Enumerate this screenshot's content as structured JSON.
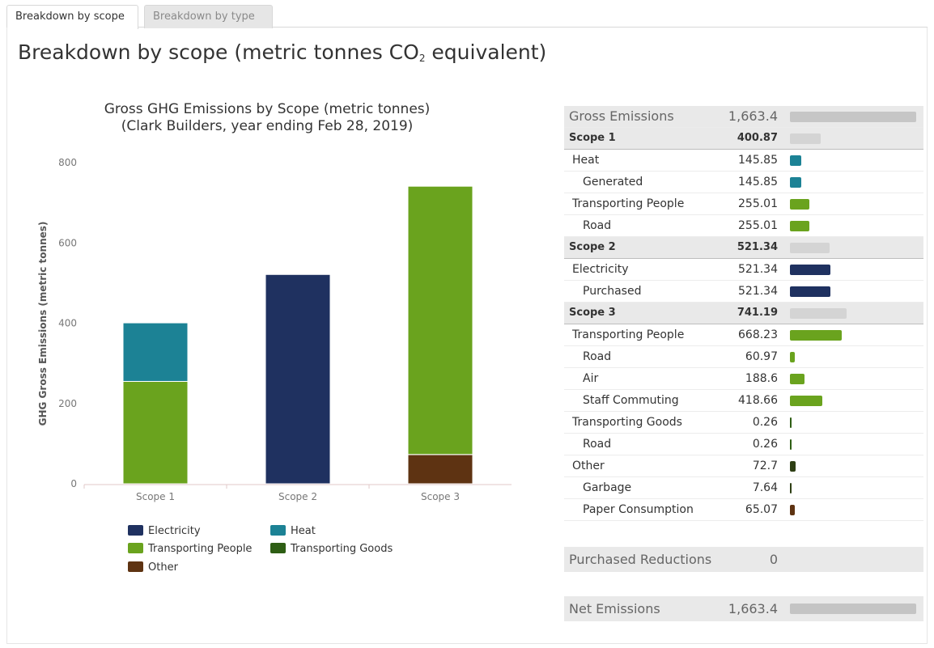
{
  "tabs": [
    {
      "label": "Breakdown by scope",
      "active": true
    },
    {
      "label": "Breakdown by type",
      "active": false
    }
  ],
  "page_title": {
    "text": "Breakdown by scope (metric tonnes CO",
    "subscript": "2",
    "suffix": " equivalent)"
  },
  "colors": {
    "electricity": "#1f3160",
    "heat": "#1c8295",
    "transporting_people": "#6aa31e",
    "transporting_goods": "#2e5e14",
    "other": "#5e3312",
    "grey_bar": "#c6c6c6"
  },
  "chart_data": {
    "type": "bar",
    "stacked": true,
    "title": "Gross GHG Emissions by Scope (metric tonnes)",
    "subtitle": "(Clark Builders, year ending Feb 28, 2019)",
    "ylabel": "GHG Gross Emissions (metric tonnes)",
    "xlabel": "",
    "categories": [
      "Scope 1",
      "Scope 2",
      "Scope 3"
    ],
    "ylim": [
      0,
      800
    ],
    "yticks": [
      0,
      200,
      400,
      600,
      800
    ],
    "legend_position": "bottom",
    "series": [
      {
        "name": "Other",
        "color": "#5e3312",
        "values": [
          0,
          0,
          72.7
        ]
      },
      {
        "name": "Transporting Goods",
        "color": "#2e5e14",
        "values": [
          0,
          0,
          0.26
        ]
      },
      {
        "name": "Transporting People",
        "color": "#6aa31e",
        "values": [
          255.01,
          0,
          668.23
        ]
      },
      {
        "name": "Electricity",
        "color": "#1f3160",
        "values": [
          0,
          521.34,
          0
        ]
      },
      {
        "name": "Heat",
        "color": "#1c8295",
        "values": [
          145.85,
          0,
          0
        ]
      }
    ],
    "legend": [
      {
        "name": "Electricity",
        "color": "#1f3160"
      },
      {
        "name": "Heat",
        "color": "#1c8295"
      },
      {
        "name": "Transporting People",
        "color": "#6aa31e"
      },
      {
        "name": "Transporting Goods",
        "color": "#2e5e14"
      },
      {
        "name": "Other",
        "color": "#5e3312"
      }
    ]
  },
  "table": {
    "rows": [
      {
        "label": "Gross Emissions",
        "value": "1,663.4",
        "level": 0,
        "kind": "gross",
        "bar_value": 1663.4,
        "bar_color": "#c6c6c6"
      },
      {
        "label": "Scope 1",
        "value": "400.87",
        "level": 0,
        "kind": "scope",
        "bar_value": 400.87,
        "bar_color": "#d4d4d4"
      },
      {
        "label": "Heat",
        "value": "145.85",
        "level": 1,
        "kind": "item",
        "bar_value": 145.85,
        "bar_color": "#1c8295"
      },
      {
        "label": "Generated",
        "value": "145.85",
        "level": 2,
        "kind": "item",
        "bar_value": 145.85,
        "bar_color": "#1c8295"
      },
      {
        "label": "Transporting People",
        "value": "255.01",
        "level": 1,
        "kind": "item",
        "bar_value": 255.01,
        "bar_color": "#6aa31e"
      },
      {
        "label": "Road",
        "value": "255.01",
        "level": 2,
        "kind": "item",
        "bar_value": 255.01,
        "bar_color": "#6aa31e"
      },
      {
        "label": "Scope 2",
        "value": "521.34",
        "level": 0,
        "kind": "scope",
        "bar_value": 521.34,
        "bar_color": "#d4d4d4"
      },
      {
        "label": "Electricity",
        "value": "521.34",
        "level": 1,
        "kind": "item",
        "bar_value": 521.34,
        "bar_color": "#1f3160"
      },
      {
        "label": "Purchased",
        "value": "521.34",
        "level": 2,
        "kind": "item",
        "bar_value": 521.34,
        "bar_color": "#1f3160"
      },
      {
        "label": "Scope 3",
        "value": "741.19",
        "level": 0,
        "kind": "scope",
        "bar_value": 741.19,
        "bar_color": "#d4d4d4"
      },
      {
        "label": "Transporting People",
        "value": "668.23",
        "level": 1,
        "kind": "item",
        "bar_value": 668.23,
        "bar_color": "#6aa31e"
      },
      {
        "label": "Road",
        "value": "60.97",
        "level": 2,
        "kind": "item",
        "bar_value": 60.97,
        "bar_color": "#6aa31e"
      },
      {
        "label": "Air",
        "value": "188.6",
        "level": 2,
        "kind": "item",
        "bar_value": 188.6,
        "bar_color": "#6aa31e"
      },
      {
        "label": "Staff Commuting",
        "value": "418.66",
        "level": 2,
        "kind": "item",
        "bar_value": 418.66,
        "bar_color": "#6aa31e"
      },
      {
        "label": "Transporting Goods",
        "value": "0.26",
        "level": 1,
        "kind": "item",
        "bar_value": 0.26,
        "bar_color": "#2e5e14"
      },
      {
        "label": "Road",
        "value": "0.26",
        "level": 2,
        "kind": "item",
        "bar_value": 0.26,
        "bar_color": "#2e5e14"
      },
      {
        "label": "Other",
        "value": "72.7",
        "level": 1,
        "kind": "item",
        "bar_value": 72.7,
        "bar_color": "#2e3f14"
      },
      {
        "label": "Garbage",
        "value": "7.64",
        "level": 2,
        "kind": "item",
        "bar_value": 7.64,
        "bar_color": "#2e3f14"
      },
      {
        "label": "Paper Consumption",
        "value": "65.07",
        "level": 2,
        "kind": "item",
        "bar_value": 65.07,
        "bar_color": "#5e3312"
      }
    ]
  },
  "purchased_reductions": {
    "label": "Purchased Reductions",
    "value": "0",
    "bar_value": 0
  },
  "net_emissions": {
    "label": "Net Emissions",
    "value": "1,663.4",
    "bar_value": 1663.4
  }
}
